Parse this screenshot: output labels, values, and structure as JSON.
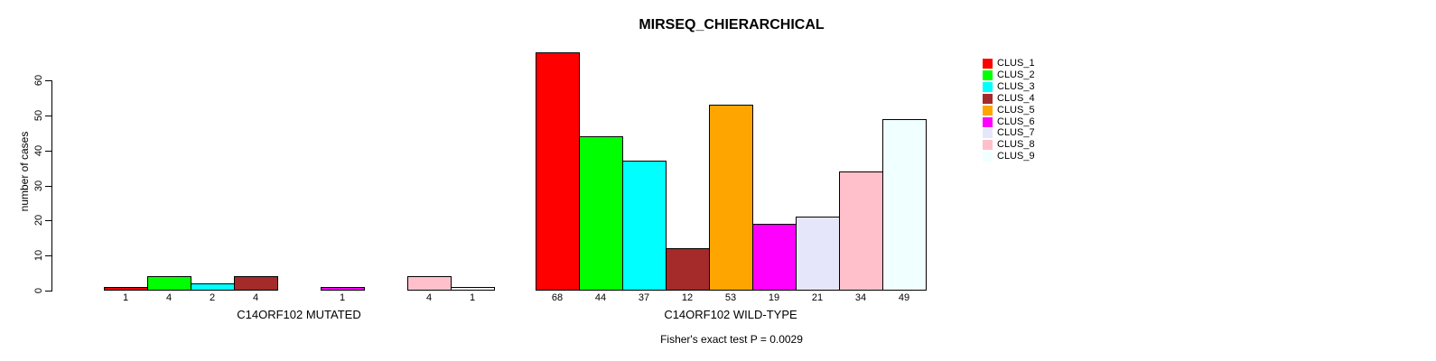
{
  "chart_data": {
    "type": "bar",
    "title": "MIRSEQ_CHIERARCHICAL",
    "ylabel": "number of cases",
    "xlabel": "",
    "ylim": [
      0,
      60
    ],
    "yticks": [
      0,
      10,
      20,
      30,
      40,
      50,
      60
    ],
    "grid": false,
    "legend_position": "right",
    "legend_labels": [
      "CLUS_1",
      "CLUS_2",
      "CLUS_3",
      "CLUS_4",
      "CLUS_5",
      "CLUS_6",
      "CLUS_7",
      "CLUS_8",
      "CLUS_9"
    ],
    "colors": [
      "#ff0000",
      "#00ff00",
      "#00ffff",
      "#a52a2a",
      "#ffa500",
      "#ff00ff",
      "#e6e6fa",
      "#ffc0cb",
      "#f0ffff"
    ],
    "bar_border_color": "#000000",
    "groups": [
      {
        "label": "C14ORF102 MUTATED",
        "values": [
          1,
          4,
          2,
          4,
          0,
          1,
          0,
          4,
          1
        ]
      },
      {
        "label": "C14ORF102 WILD-TYPE",
        "values": [
          68,
          44,
          37,
          12,
          53,
          19,
          21,
          34,
          49
        ]
      }
    ],
    "bar_value_labels_shown": true,
    "annotation": "Fisher's exact test P = 0.0029"
  }
}
